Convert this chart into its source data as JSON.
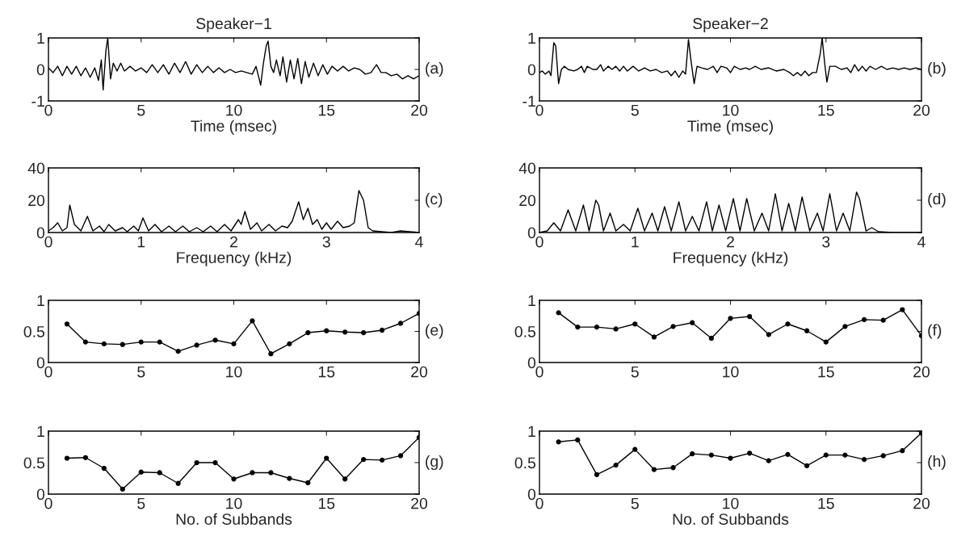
{
  "chart_data": [
    {
      "type": "line",
      "title": "Speaker−1",
      "xlabel": "Time (msec)",
      "annotations": [
        "(a)"
      ],
      "xlim": [
        0,
        20
      ],
      "xticks": [
        0,
        5,
        10,
        15,
        20
      ],
      "ylim": [
        -1,
        1
      ],
      "yticks": [
        -1,
        0,
        1
      ],
      "x": [
        0,
        0.25,
        0.5,
        0.75,
        1,
        1.25,
        1.5,
        1.75,
        2,
        2.25,
        2.5,
        2.7,
        2.85,
        2.95,
        3.1,
        3.2,
        3.35,
        3.5,
        3.7,
        3.9,
        4.1,
        4.4,
        4.7,
        5,
        5.3,
        5.6,
        5.9,
        6.2,
        6.5,
        6.8,
        7.1,
        7.4,
        7.7,
        8,
        8.3,
        8.6,
        8.9,
        9.2,
        9.5,
        9.8,
        10.1,
        10.4,
        10.7,
        11,
        11.2,
        11.45,
        11.6,
        11.75,
        11.85,
        12,
        12.15,
        12.3,
        12.5,
        12.65,
        12.85,
        13.05,
        13.25,
        13.45,
        13.65,
        13.85,
        14.05,
        14.3,
        14.55,
        14.8,
        15.05,
        15.3,
        15.6,
        15.9,
        16.2,
        16.5,
        16.8,
        17.1,
        17.4,
        17.7,
        17.95,
        18.2,
        18.5,
        18.8,
        19.1,
        19.4,
        19.7,
        20
      ],
      "series": [
        {
          "color": "#000000",
          "values": [
            0.05,
            -0.1,
            0.1,
            -0.2,
            0.1,
            -0.15,
            0.1,
            -0.2,
            0.05,
            -0.25,
            0.05,
            -0.35,
            0.3,
            -0.65,
            0.6,
            1.0,
            -0.3,
            0.2,
            -0.05,
            0.2,
            -0.05,
            0.1,
            -0.05,
            0.05,
            -0.1,
            0.15,
            -0.1,
            0.15,
            -0.15,
            0.2,
            -0.1,
            0.25,
            -0.15,
            0.15,
            -0.1,
            0.1,
            -0.1,
            0.05,
            -0.1,
            0.0,
            -0.1,
            -0.05,
            -0.1,
            -0.15,
            0.1,
            -0.5,
            0.2,
            0.75,
            0.9,
            0.1,
            -0.1,
            0.3,
            -0.2,
            0.4,
            -0.4,
            0.3,
            -0.3,
            0.35,
            -0.45,
            0.25,
            -0.25,
            0.2,
            -0.2,
            0.15,
            -0.15,
            0.1,
            -0.05,
            0.1,
            -0.05,
            0.05,
            0.0,
            -0.15,
            -0.1,
            0.15,
            -0.1,
            -0.1,
            -0.2,
            -0.15,
            -0.3,
            -0.2,
            -0.3,
            -0.2
          ]
        }
      ]
    },
    {
      "type": "line",
      "title": "Speaker−2",
      "xlabel": "Time (msec)",
      "annotations": [
        "(b)"
      ],
      "xlim": [
        0,
        20
      ],
      "xticks": [
        0,
        5,
        10,
        15,
        20
      ],
      "ylim": [
        -1,
        1
      ],
      "yticks": [
        -1,
        0,
        1
      ],
      "x": [
        0,
        0.15,
        0.3,
        0.5,
        0.6,
        0.75,
        0.85,
        1.0,
        1.15,
        1.3,
        1.5,
        1.8,
        2.0,
        2.2,
        2.35,
        2.5,
        2.8,
        3.0,
        3.2,
        3.35,
        3.6,
        3.8,
        4.0,
        4.2,
        4.4,
        4.6,
        4.9,
        5.2,
        5.5,
        5.8,
        6.1,
        6.4,
        6.7,
        6.9,
        7.1,
        7.3,
        7.5,
        7.65,
        7.8,
        7.95,
        8.1,
        8.25,
        8.5,
        8.8,
        9.1,
        9.3,
        9.5,
        9.8,
        10.0,
        10.2,
        10.5,
        10.8,
        11.0,
        11.3,
        11.6,
        12.0,
        12.4,
        12.8,
        13.1,
        13.3,
        13.5,
        13.7,
        13.9,
        14.1,
        14.3,
        14.5,
        14.7,
        14.8,
        14.95,
        15.05,
        15.2,
        15.5,
        15.8,
        16.1,
        16.3,
        16.5,
        16.7,
        16.9,
        17.1,
        17.3,
        17.6,
        17.9,
        18.2,
        18.5,
        18.8,
        19.1,
        19.4,
        19.7,
        20
      ],
      "series": [
        {
          "color": "#000000",
          "values": [
            -0.1,
            -0.05,
            -0.15,
            -0.05,
            -0.2,
            0.85,
            0.75,
            -0.45,
            0.0,
            0.1,
            0.0,
            -0.05,
            0.0,
            0.1,
            -0.1,
            0.1,
            0.0,
            0.0,
            0.15,
            -0.05,
            0.1,
            0.0,
            0.1,
            -0.05,
            0.1,
            -0.05,
            0.1,
            -0.05,
            0.05,
            -0.05,
            0.0,
            -0.1,
            -0.05,
            -0.2,
            -0.05,
            -0.25,
            -0.05,
            -0.15,
            0.95,
            0.2,
            -0.45,
            0.1,
            0.05,
            0.0,
            0.1,
            -0.1,
            0.1,
            0.05,
            -0.1,
            0.1,
            0.0,
            0.05,
            0.0,
            0.1,
            0.0,
            0.05,
            -0.05,
            0.0,
            -0.1,
            -0.2,
            -0.1,
            -0.2,
            -0.05,
            -0.2,
            -0.1,
            -0.1,
            0.5,
            1.0,
            0.1,
            -0.4,
            0.1,
            0.1,
            0.0,
            0.05,
            -0.1,
            0.15,
            -0.05,
            0.1,
            -0.05,
            0.1,
            0.0,
            0.1,
            0.0,
            0.05,
            0.0,
            0.05,
            0.0,
            0.05,
            0.0
          ]
        }
      ]
    },
    {
      "type": "line",
      "xlabel": "Frequency (kHz)",
      "annotations": [
        "(c)"
      ],
      "xlim": [
        0,
        4
      ],
      "xticks": [
        0,
        1,
        2,
        3,
        4
      ],
      "ylim": [
        0,
        40
      ],
      "yticks": [
        0,
        20,
        40
      ],
      "x": [
        0,
        0.05,
        0.1,
        0.15,
        0.2,
        0.23,
        0.28,
        0.35,
        0.42,
        0.48,
        0.55,
        0.6,
        0.65,
        0.72,
        0.8,
        0.85,
        0.92,
        0.97,
        1.02,
        1.08,
        1.15,
        1.22,
        1.3,
        1.37,
        1.45,
        1.52,
        1.6,
        1.67,
        1.75,
        1.82,
        1.9,
        1.97,
        2.05,
        2.08,
        2.12,
        2.18,
        2.25,
        2.3,
        2.38,
        2.45,
        2.52,
        2.58,
        2.63,
        2.7,
        2.75,
        2.8,
        2.85,
        2.9,
        2.95,
        3.0,
        3.05,
        3.12,
        3.18,
        3.25,
        3.3,
        3.35,
        3.4,
        3.45,
        3.5,
        3.6,
        3.7,
        3.8,
        3.9,
        4.0
      ],
      "series": [
        {
          "color": "#000000",
          "values": [
            1,
            3,
            6,
            1,
            3,
            17,
            5,
            1,
            10,
            1,
            4,
            0.5,
            5,
            1,
            3,
            0.5,
            4,
            1,
            9,
            1,
            5,
            0.5,
            4,
            0.5,
            4,
            0.5,
            3,
            0.5,
            4,
            0.5,
            5,
            1,
            8,
            5,
            13,
            2,
            6,
            1,
            5,
            1,
            4,
            3,
            7,
            19,
            8,
            15,
            5,
            8,
            2,
            6,
            2,
            7,
            3,
            4,
            6,
            26,
            20,
            3,
            1,
            0.5,
            0,
            1,
            0.5,
            0
          ]
        }
      ]
    },
    {
      "type": "line",
      "xlabel": "Frequency (kHz)",
      "annotations": [
        "(d)"
      ],
      "xlim": [
        0,
        4
      ],
      "xticks": [
        0,
        1,
        2,
        3,
        4
      ],
      "ylim": [
        0,
        40
      ],
      "yticks": [
        0,
        20,
        40
      ],
      "x": [
        0,
        0.08,
        0.15,
        0.22,
        0.3,
        0.38,
        0.46,
        0.52,
        0.59,
        0.62,
        0.67,
        0.74,
        0.8,
        0.88,
        0.95,
        1.03,
        1.1,
        1.18,
        1.24,
        1.31,
        1.38,
        1.46,
        1.53,
        1.6,
        1.67,
        1.75,
        1.81,
        1.88,
        1.95,
        2.03,
        2.1,
        2.17,
        2.25,
        2.33,
        2.4,
        2.47,
        2.54,
        2.61,
        2.68,
        2.75,
        2.83,
        2.91,
        2.97,
        3.04,
        3.11,
        3.18,
        3.25,
        3.32,
        3.35,
        3.42,
        3.48,
        3.55,
        3.7,
        3.85,
        4.0
      ],
      "series": [
        {
          "color": "#000000",
          "values": [
            0,
            1,
            6,
            1,
            14,
            1,
            17,
            1,
            20,
            17,
            1,
            12,
            1,
            5,
            1,
            15,
            1,
            12,
            1,
            16,
            1,
            19,
            1,
            10,
            1,
            19,
            1,
            17,
            1,
            21,
            1,
            21,
            1,
            12,
            1,
            24,
            1,
            18,
            1,
            22,
            1,
            12,
            1,
            24,
            1,
            12,
            1,
            25,
            21,
            1,
            3,
            0.5,
            0,
            0,
            0
          ]
        }
      ]
    },
    {
      "type": "line",
      "marker": "circle",
      "annotations": [
        "(e)"
      ],
      "xlim": [
        0,
        20
      ],
      "xticks": [
        0,
        5,
        10,
        15,
        20
      ],
      "ylim": [
        0,
        1
      ],
      "yticks": [
        0,
        0.5,
        1
      ],
      "x": [
        1,
        2,
        3,
        4,
        5,
        6,
        7,
        8,
        9,
        10,
        11,
        12,
        13,
        14,
        15,
        16,
        17,
        18,
        19,
        20
      ],
      "series": [
        {
          "color": "#000000",
          "values": [
            0.62,
            0.33,
            0.3,
            0.29,
            0.33,
            0.33,
            0.18,
            0.28,
            0.36,
            0.3,
            0.67,
            0.14,
            0.3,
            0.48,
            0.51,
            0.49,
            0.48,
            0.52,
            0.63,
            0.79
          ]
        }
      ]
    },
    {
      "type": "line",
      "marker": "circle",
      "annotations": [
        "(f)"
      ],
      "xlim": [
        0,
        20
      ],
      "xticks": [
        0,
        5,
        10,
        15,
        20
      ],
      "ylim": [
        0,
        1
      ],
      "yticks": [
        0,
        0.5,
        1
      ],
      "x": [
        1,
        2,
        3,
        4,
        5,
        6,
        7,
        8,
        9,
        10,
        11,
        12,
        13,
        14,
        15,
        16,
        17,
        18,
        19,
        20
      ],
      "series": [
        {
          "color": "#000000",
          "values": [
            0.8,
            0.57,
            0.57,
            0.54,
            0.62,
            0.41,
            0.58,
            0.64,
            0.39,
            0.71,
            0.74,
            0.45,
            0.62,
            0.51,
            0.33,
            0.58,
            0.69,
            0.68,
            0.85,
            0.43
          ]
        }
      ]
    },
    {
      "type": "line",
      "marker": "circle",
      "xlabel": "No. of Subbands",
      "annotations": [
        "(g)"
      ],
      "xlim": [
        0,
        20
      ],
      "xticks": [
        0,
        5,
        10,
        15,
        20
      ],
      "ylim": [
        0,
        1
      ],
      "yticks": [
        0,
        0.5,
        1
      ],
      "x": [
        1,
        2,
        3,
        4,
        5,
        6,
        7,
        8,
        9,
        10,
        11,
        12,
        13,
        14,
        15,
        16,
        17,
        18,
        19,
        20
      ],
      "series": [
        {
          "color": "#000000",
          "values": [
            0.57,
            0.58,
            0.41,
            0.08,
            0.35,
            0.34,
            0.17,
            0.5,
            0.5,
            0.24,
            0.34,
            0.34,
            0.25,
            0.18,
            0.57,
            0.24,
            0.55,
            0.54,
            0.61,
            0.9
          ]
        }
      ]
    },
    {
      "type": "line",
      "marker": "circle",
      "xlabel": "No. of Subbands",
      "annotations": [
        "(h)"
      ],
      "xlim": [
        0,
        20
      ],
      "xticks": [
        0,
        5,
        10,
        15,
        20
      ],
      "ylim": [
        0,
        1
      ],
      "yticks": [
        0,
        0.5,
        1
      ],
      "x": [
        1,
        2,
        3,
        4,
        5,
        6,
        7,
        8,
        9,
        10,
        11,
        12,
        13,
        14,
        15,
        16,
        17,
        18,
        19,
        20
      ],
      "series": [
        {
          "color": "#000000",
          "values": [
            0.83,
            0.86,
            0.31,
            0.46,
            0.71,
            0.39,
            0.42,
            0.64,
            0.62,
            0.57,
            0.65,
            0.53,
            0.63,
            0.45,
            0.62,
            0.62,
            0.55,
            0.61,
            0.69,
            0.97
          ]
        }
      ]
    }
  ]
}
